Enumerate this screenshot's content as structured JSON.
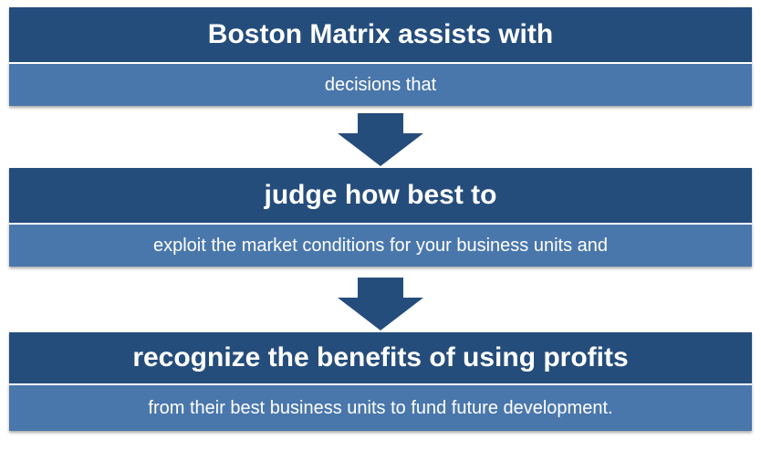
{
  "diagram": {
    "steps": [
      {
        "heading": "Boston Matrix assists with",
        "detail": "decisions that"
      },
      {
        "heading": "judge how best to",
        "detail": "exploit the market conditions for your business units and"
      },
      {
        "heading": "recognize the benefits of using profits",
        "detail": "from their best business units to fund future development."
      }
    ],
    "colors": {
      "heading_bg": "#254d7c",
      "detail_bg": "#4a77ab",
      "arrow": "#254d7c",
      "text": "#ffffff"
    },
    "icons": {
      "connector": "down-arrow-icon"
    }
  }
}
